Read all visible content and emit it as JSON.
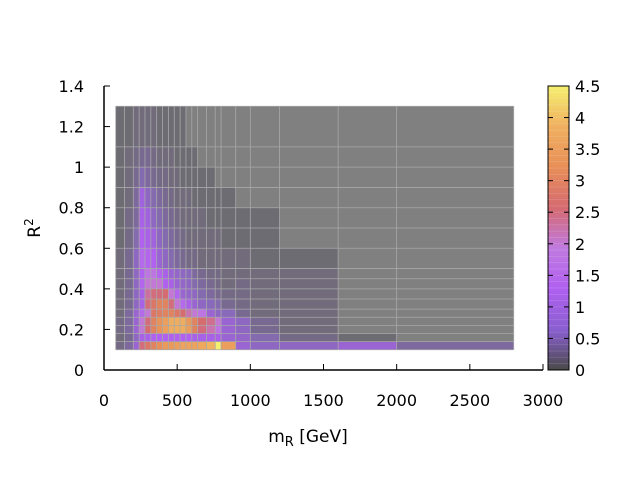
{
  "chart_data": {
    "type": "heatmap",
    "xlabel_main": "m",
    "xlabel_sub": "R",
    "xlabel_unit": " [GeV]",
    "ylabel_main": "R",
    "ylabel_sup": "2",
    "xlim": [
      0,
      3000
    ],
    "ylim": [
      0,
      1.4
    ],
    "x_ticks": [
      0,
      500,
      1000,
      1500,
      2000,
      2500,
      3000
    ],
    "x_tick_labels": [
      "0",
      "500",
      "1000",
      "1500",
      "2000",
      "2500",
      "3000"
    ],
    "y_ticks": [
      0,
      0.2,
      0.4,
      0.6,
      0.8,
      1.0,
      1.2,
      1.4
    ],
    "y_tick_labels": [
      "0",
      "0.2",
      "0.4",
      "0.6",
      "0.8",
      "1",
      "1.2",
      "1.4"
    ],
    "x_edges": [
      80,
      140,
      200,
      240,
      280,
      320,
      360,
      400,
      440,
      480,
      520,
      560,
      600,
      640,
      700,
      760,
      800,
      900,
      1000,
      1200,
      1600,
      2000,
      2800
    ],
    "y_edges": [
      0.1,
      0.14,
      0.18,
      0.22,
      0.26,
      0.3,
      0.35,
      0.4,
      0.45,
      0.5,
      0.6,
      0.7,
      0.8,
      0.9,
      1.0,
      1.1,
      1.3
    ],
    "z": [
      [
        0.3,
        0.5,
        1.0,
        2.5,
        2.8,
        3.0,
        3.2,
        3.4,
        3.4,
        3.5,
        3.6,
        3.6,
        3.6,
        3.7,
        3.9,
        4.5,
        3.5,
        1.0,
        0.8,
        0.8,
        1.0,
        0.5
      ],
      [
        0.2,
        0.4,
        0.8,
        1.2,
        1.2,
        1.3,
        1.3,
        1.3,
        1.3,
        1.3,
        1.3,
        1.3,
        1.2,
        1.2,
        1.2,
        1.2,
        1.0,
        0.9,
        0.6,
        0.3,
        0.1,
        0.0
      ],
      [
        0.3,
        0.5,
        1.0,
        2.0,
        2.6,
        3.0,
        3.3,
        3.5,
        3.8,
        3.8,
        3.8,
        3.5,
        3.0,
        2.5,
        2.2,
        1.8,
        1.0,
        0.8,
        0.4,
        0.2,
        0.0,
        0.0
      ],
      [
        0.3,
        0.5,
        1.0,
        2.0,
        2.5,
        3.0,
        3.3,
        3.5,
        3.8,
        3.8,
        3.8,
        3.4,
        3.0,
        2.6,
        2.4,
        2.0,
        1.0,
        0.8,
        0.4,
        0.2,
        0.0,
        0.0
      ],
      [
        0.2,
        0.5,
        1.0,
        1.5,
        2.0,
        2.8,
        2.9,
        3.0,
        3.0,
        2.8,
        2.6,
        2.2,
        2.0,
        1.8,
        1.0,
        0.8,
        0.7,
        0.4,
        0.2,
        0.2,
        0.0,
        0.0
      ],
      [
        0.2,
        0.4,
        0.8,
        1.2,
        2.5,
        2.8,
        3.0,
        3.0,
        2.5,
        2.0,
        1.5,
        1.2,
        1.0,
        0.8,
        0.7,
        0.6,
        0.4,
        0.3,
        0.2,
        0.2,
        0.0,
        0.0
      ],
      [
        0.2,
        0.4,
        0.8,
        1.2,
        2.3,
        2.5,
        2.5,
        2.6,
        2.0,
        1.4,
        1.0,
        0.9,
        0.8,
        0.6,
        0.5,
        0.4,
        0.3,
        0.3,
        0.2,
        0.2,
        0.0,
        0.0
      ],
      [
        0.2,
        0.4,
        0.8,
        1.4,
        2.0,
        2.0,
        2.0,
        1.3,
        1.2,
        1.0,
        0.9,
        0.8,
        0.6,
        0.5,
        0.4,
        0.3,
        0.2,
        0.3,
        0.2,
        0.2,
        0.0,
        0.0
      ],
      [
        0.2,
        0.4,
        0.8,
        1.3,
        1.8,
        1.8,
        1.4,
        1.2,
        1.0,
        0.9,
        0.8,
        0.7,
        0.5,
        0.4,
        0.3,
        0.3,
        0.2,
        0.2,
        0.2,
        0.2,
        0.0,
        0.0
      ],
      [
        0.2,
        0.4,
        0.8,
        1.5,
        1.4,
        1.3,
        1.0,
        0.8,
        0.6,
        0.5,
        0.4,
        0.3,
        0.3,
        0.2,
        0.2,
        0.2,
        0.2,
        0.2,
        0.1,
        0.1,
        0.0,
        0.0
      ],
      [
        0.1,
        0.3,
        0.6,
        1.3,
        1.2,
        1.1,
        0.8,
        0.6,
        0.5,
        0.4,
        0.3,
        0.2,
        0.2,
        0.2,
        0.2,
        0.2,
        0.1,
        0.1,
        0.1,
        0.0,
        0.0,
        0.0
      ],
      [
        0.1,
        0.3,
        0.5,
        1.2,
        1.1,
        0.8,
        0.6,
        0.5,
        0.4,
        0.3,
        0.2,
        0.2,
        0.2,
        0.2,
        0.1,
        0.1,
        0.1,
        0.1,
        0.1,
        0.0,
        0.0,
        0.0
      ],
      [
        0.1,
        0.2,
        0.5,
        1.1,
        0.8,
        0.6,
        0.5,
        0.4,
        0.3,
        0.2,
        0.2,
        0.2,
        0.1,
        0.1,
        0.1,
        0.1,
        0.1,
        0.0,
        0.0,
        0.0,
        0.0,
        0.0
      ],
      [
        0.1,
        0.2,
        0.4,
        0.6,
        0.5,
        0.4,
        0.3,
        0.3,
        0.2,
        0.2,
        0.1,
        0.1,
        0.1,
        0.1,
        0.1,
        0.0,
        0.0,
        0.0,
        0.0,
        0.0,
        0.0,
        0.0
      ],
      [
        0.1,
        0.2,
        0.3,
        0.4,
        0.4,
        0.3,
        0.2,
        0.2,
        0.2,
        0.1,
        0.1,
        0.1,
        0.1,
        0.0,
        0.0,
        0.0,
        0.0,
        0.0,
        0.0,
        0.0,
        0.0,
        0.0
      ],
      [
        0.1,
        0.1,
        0.2,
        0.2,
        0.2,
        0.2,
        0.1,
        0.1,
        0.1,
        0.1,
        0.1,
        0.0,
        0.0,
        0.0,
        0.0,
        0.0,
        0.0,
        0.0,
        0.0,
        0.0,
        0.0,
        0.0
      ]
    ],
    "zlim": [
      0,
      4.5
    ],
    "colorbar_ticks": [
      0,
      0.5,
      1,
      1.5,
      2,
      2.5,
      3,
      3.5,
      4,
      4.5
    ],
    "colorbar_tick_labels": [
      "0",
      "0.5",
      "1",
      "1.5",
      "2",
      "2.5",
      "3",
      "3.5",
      "4",
      "4.5"
    ],
    "colors": {
      "background_cell": "#808080",
      "grid": "#a8a8a8",
      "cmap": [
        "#4a4a4a",
        "#8a5fd0",
        "#b060f0",
        "#c07ae0",
        "#d56a70",
        "#e88f58",
        "#f0b060",
        "#f5f070"
      ]
    }
  }
}
